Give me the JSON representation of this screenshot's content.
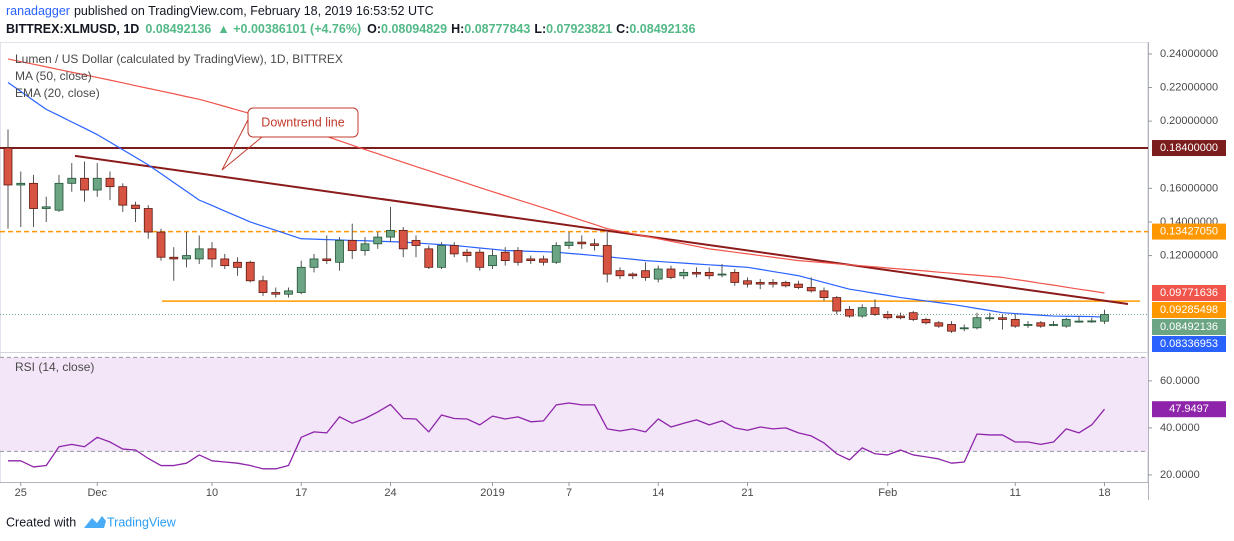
{
  "header": {
    "author": "ranadagger",
    "published": "published on TradingView.com, February 18, 2019 16:53:52 UTC",
    "symbol": "BITTREX:XLMUSD, 1D",
    "price": "0.08492136",
    "change": "▲ +0.00386101 (+4.76%)",
    "ohlc": [
      {
        "key": "O:",
        "value": "0.08094829"
      },
      {
        "key": "H:",
        "value": "0.08777843"
      },
      {
        "key": "L:",
        "value": "0.07923821"
      },
      {
        "key": "C:",
        "value": "0.08492136"
      }
    ]
  },
  "chart_data": [
    {
      "type": "candlestick",
      "title": "Lumen / US Dollar (calculated by TradingView), 1D, BITTREX",
      "categories": [
        null,
        "25",
        null,
        null,
        null,
        null,
        null,
        "Dec",
        null,
        null,
        null,
        null,
        null,
        null,
        null,
        null,
        "10",
        null,
        null,
        null,
        null,
        null,
        null,
        "17",
        null,
        null,
        null,
        null,
        null,
        null,
        "24",
        null,
        null,
        null,
        null,
        null,
        null,
        null,
        "2019",
        null,
        null,
        null,
        null,
        null,
        "7",
        null,
        null,
        null,
        null,
        null,
        null,
        "14",
        null,
        null,
        null,
        null,
        null,
        null,
        "21",
        null,
        null,
        null,
        null,
        null,
        null,
        null,
        null,
        null,
        null,
        "Feb",
        null,
        null,
        null,
        null,
        null,
        null,
        null,
        null,
        null,
        "11",
        null,
        null,
        null,
        null,
        null,
        null,
        "18"
      ],
      "open": [
        0.184,
        0.162,
        0.163,
        0.148,
        0.147,
        0.163,
        0.166,
        0.159,
        0.166,
        0.161,
        0.15,
        0.148,
        0.134,
        0.119,
        0.118,
        0.118,
        0.124,
        0.118,
        0.116,
        0.116,
        0.105,
        0.098,
        0.097,
        0.098,
        0.113,
        0.118,
        0.116,
        0.129,
        0.123,
        0.127,
        0.131,
        0.135,
        0.129,
        0.124,
        0.113,
        0.126,
        0.122,
        0.122,
        0.114,
        0.122,
        0.123,
        0.118,
        0.118,
        0.116,
        0.126,
        0.128,
        0.127,
        0.126,
        0.111,
        0.109,
        0.111,
        0.106,
        0.112,
        0.108,
        0.11,
        0.11,
        0.109,
        0.11,
        0.105,
        0.104,
        0.104,
        0.104,
        0.103,
        0.101,
        0.099,
        0.095,
        0.088,
        0.084,
        0.089,
        0.085,
        0.084,
        0.086,
        0.082,
        0.08,
        0.079,
        0.077,
        0.077,
        0.083,
        0.083,
        0.082,
        0.079,
        0.08,
        0.079,
        0.078,
        0.081,
        0.081,
        0.08094829
      ],
      "high": [
        0.195,
        0.17,
        0.168,
        0.155,
        0.168,
        0.175,
        0.176,
        0.175,
        0.17,
        0.163,
        0.152,
        0.15,
        0.136,
        0.125,
        0.134,
        0.132,
        0.128,
        0.121,
        0.119,
        0.117,
        0.108,
        0.101,
        0.101,
        0.117,
        0.121,
        0.132,
        0.131,
        0.139,
        0.131,
        0.134,
        0.149,
        0.137,
        0.132,
        0.126,
        0.128,
        0.128,
        0.124,
        0.124,
        0.124,
        0.125,
        0.125,
        0.12,
        0.12,
        0.128,
        0.134,
        0.132,
        0.13,
        0.134,
        0.113,
        0.11,
        0.116,
        0.114,
        0.114,
        0.112,
        0.113,
        0.113,
        0.115,
        0.112,
        0.107,
        0.106,
        0.106,
        0.105,
        0.105,
        0.107,
        0.101,
        0.096,
        0.09,
        0.091,
        0.094,
        0.087,
        0.086,
        0.087,
        0.083,
        0.081,
        0.081,
        0.079,
        0.086,
        0.086,
        0.085,
        0.085,
        0.081,
        0.081,
        0.081,
        0.083,
        0.084,
        0.083,
        0.08777843
      ],
      "low": [
        0.136,
        0.137,
        0.137,
        0.14,
        0.146,
        0.158,
        0.152,
        0.155,
        0.153,
        0.146,
        0.14,
        0.13,
        0.117,
        0.105,
        0.113,
        0.115,
        0.113,
        0.112,
        0.108,
        0.104,
        0.096,
        0.095,
        0.095,
        0.097,
        0.11,
        0.115,
        0.111,
        0.118,
        0.12,
        0.124,
        0.128,
        0.119,
        0.119,
        0.112,
        0.112,
        0.119,
        0.116,
        0.111,
        0.112,
        0.114,
        0.114,
        0.115,
        0.114,
        0.115,
        0.124,
        0.124,
        0.123,
        0.104,
        0.106,
        0.106,
        0.105,
        0.104,
        0.106,
        0.106,
        0.107,
        0.106,
        0.107,
        0.102,
        0.101,
        0.1,
        0.101,
        0.101,
        0.1,
        0.098,
        0.093,
        0.085,
        0.083,
        0.083,
        0.084,
        0.082,
        0.082,
        0.081,
        0.079,
        0.077,
        0.074,
        0.075,
        0.076,
        0.081,
        0.076,
        0.077,
        0.077,
        0.077,
        0.078,
        0.077,
        0.08,
        0.08,
        0.07923821
      ],
      "close": [
        0.162,
        0.163,
        0.148,
        0.149,
        0.163,
        0.166,
        0.159,
        0.166,
        0.161,
        0.15,
        0.148,
        0.134,
        0.119,
        0.118,
        0.12,
        0.124,
        0.118,
        0.114,
        0.113,
        0.105,
        0.098,
        0.097,
        0.099,
        0.113,
        0.118,
        0.117,
        0.129,
        0.123,
        0.127,
        0.131,
        0.135,
        0.124,
        0.126,
        0.113,
        0.126,
        0.121,
        0.12,
        0.113,
        0.12,
        0.117,
        0.116,
        0.117,
        0.116,
        0.126,
        0.128,
        0.127,
        0.126,
        0.109,
        0.108,
        0.108,
        0.107,
        0.112,
        0.107,
        0.11,
        0.109,
        0.108,
        0.109,
        0.104,
        0.103,
        0.103,
        0.103,
        0.102,
        0.101,
        0.099,
        0.095,
        0.087,
        0.084,
        0.089,
        0.085,
        0.083,
        0.083,
        0.082,
        0.08,
        0.078,
        0.075,
        0.077,
        0.083,
        0.083,
        0.082,
        0.078,
        0.079,
        0.078,
        0.079,
        0.082,
        0.081,
        0.0811,
        0.08492136
      ],
      "up_color": "#6ba583",
      "down_color": "#d75442",
      "series": [
        {
          "name": "MA (50, close)",
          "color": "#f0544a",
          "values": [
            0.237,
            0.2354,
            0.2339,
            0.2323,
            0.2307,
            0.2291,
            0.2276,
            0.226,
            0.2244,
            0.2228,
            0.2211,
            0.2195,
            0.2179,
            0.2163,
            0.2146,
            0.213,
            0.2109,
            0.2088,
            0.2066,
            0.2045,
            0.2024,
            0.2003,
            0.1981,
            0.196,
            0.1934,
            0.1909,
            0.1883,
            0.1857,
            0.1831,
            0.1806,
            0.178,
            0.1755,
            0.173,
            0.1705,
            0.168,
            0.1655,
            0.163,
            0.1605,
            0.158,
            0.1556,
            0.1532,
            0.1508,
            0.1484,
            0.146,
            0.1435,
            0.141,
            0.1385,
            0.136,
            0.1345,
            0.133,
            0.1315,
            0.13,
            0.1285,
            0.127,
            0.1255,
            0.124,
            0.123,
            0.122,
            0.121,
            0.12,
            0.119,
            0.118,
            0.117,
            0.1164,
            0.1158,
            0.1151,
            0.1145,
            0.1139,
            0.1133,
            0.1126,
            0.112,
            0.1114,
            0.1108,
            0.1101,
            0.1095,
            0.1089,
            0.1083,
            0.1076,
            0.107,
            0.1058,
            0.1047,
            0.1035,
            0.1024,
            0.1012,
            0.1,
            0.0989,
            0.09771636
          ]
        },
        {
          "name": "EMA (20, close)",
          "color": "#2962ff",
          "values": [
            0.223,
            0.2177,
            0.2123,
            0.207,
            0.2033,
            0.1995,
            0.1958,
            0.192,
            0.1875,
            0.183,
            0.1785,
            0.174,
            0.1688,
            0.1635,
            0.1583,
            0.153,
            0.1498,
            0.1465,
            0.1433,
            0.14,
            0.1375,
            0.135,
            0.1325,
            0.13,
            0.1298,
            0.1295,
            0.1293,
            0.129,
            0.1288,
            0.1285,
            0.1283,
            0.128,
            0.1275,
            0.127,
            0.1265,
            0.126,
            0.1253,
            0.1245,
            0.1238,
            0.123,
            0.1228,
            0.1225,
            0.1223,
            0.122,
            0.1213,
            0.1207,
            0.12,
            0.1193,
            0.1185,
            0.1178,
            0.117,
            0.1165,
            0.116,
            0.1155,
            0.115,
            0.1145,
            0.114,
            0.1135,
            0.113,
            0.1118,
            0.1105,
            0.1093,
            0.108,
            0.106,
            0.104,
            0.102,
            0.1,
            0.0988,
            0.0975,
            0.0963,
            0.095,
            0.094,
            0.093,
            0.092,
            0.091,
            0.0898,
            0.0885,
            0.0873,
            0.086,
            0.0855,
            0.085,
            0.0845,
            0.084,
            0.0839,
            0.0838,
            0.0837,
            0.08336953
          ]
        }
      ],
      "levels": [
        {
          "value": 0.184,
          "label": "0.18400000",
          "color": "#7b1d1d",
          "style": "solid"
        },
        {
          "value": 0.1342705,
          "label": "0.13427050",
          "color": "#ff9800",
          "style": "dashed"
        },
        {
          "value": 0.09285498,
          "label": "0.09285498",
          "color": "#ff9800",
          "style": "solid"
        }
      ],
      "trendline": {
        "label": "Downtrend line",
        "values": [
          0.1793,
          0.0912
        ],
        "color": "#8b1a1a"
      },
      "ylim": [
        0.0638,
        0.2471
      ],
      "yticks": [
        {
          "value": 0.12,
          "label": "0.12000000"
        },
        {
          "value": 0.14,
          "label": "0.14000000"
        },
        {
          "value": 0.16,
          "label": "0.16000000"
        },
        {
          "value": 0.2,
          "label": "0.20000000"
        },
        {
          "value": 0.22,
          "label": "0.22000000"
        },
        {
          "value": 0.24,
          "label": "0.24000000"
        }
      ]
    },
    {
      "type": "line",
      "series": [
        {
          "name": "RSI (14, close)",
          "color": "#8e24aa",
          "values": [
            26,
            26,
            23.4,
            24,
            32,
            33,
            32,
            36,
            34,
            31,
            30.6,
            27,
            24,
            24,
            25,
            28.5,
            26,
            25.5,
            25,
            24,
            22.6,
            22.6,
            24,
            36,
            38.3,
            37.9,
            44.7,
            42,
            44,
            46.8,
            50,
            44,
            43.8,
            38.3,
            45.5,
            44,
            43.8,
            41.3,
            45,
            43.8,
            44.7,
            42.6,
            43,
            49.8,
            50.6,
            49.8,
            49.8,
            39.6,
            38.7,
            39.6,
            38.3,
            43.8,
            40.4,
            42,
            43.4,
            41.3,
            43,
            40,
            39,
            40.4,
            39.6,
            40,
            37.9,
            36.6,
            33.6,
            29,
            26.4,
            31.5,
            29,
            28.5,
            30.6,
            28.5,
            27.7,
            26.8,
            25,
            25.5,
            37.4,
            37,
            37,
            34,
            34,
            33,
            34,
            39.6,
            37.9,
            41.3,
            47.9497
          ]
        }
      ],
      "bands": [
        30,
        70
      ],
      "band_color": "#f3e6f8",
      "ylim": [
        17,
        71
      ],
      "yticks": [
        {
          "value": 20,
          "label": "20.0000"
        },
        {
          "value": 40,
          "label": "40.0000"
        },
        {
          "value": 60,
          "label": "60.0000"
        }
      ]
    }
  ],
  "footer": {
    "created": "Created with",
    "brand": "TradingView"
  }
}
